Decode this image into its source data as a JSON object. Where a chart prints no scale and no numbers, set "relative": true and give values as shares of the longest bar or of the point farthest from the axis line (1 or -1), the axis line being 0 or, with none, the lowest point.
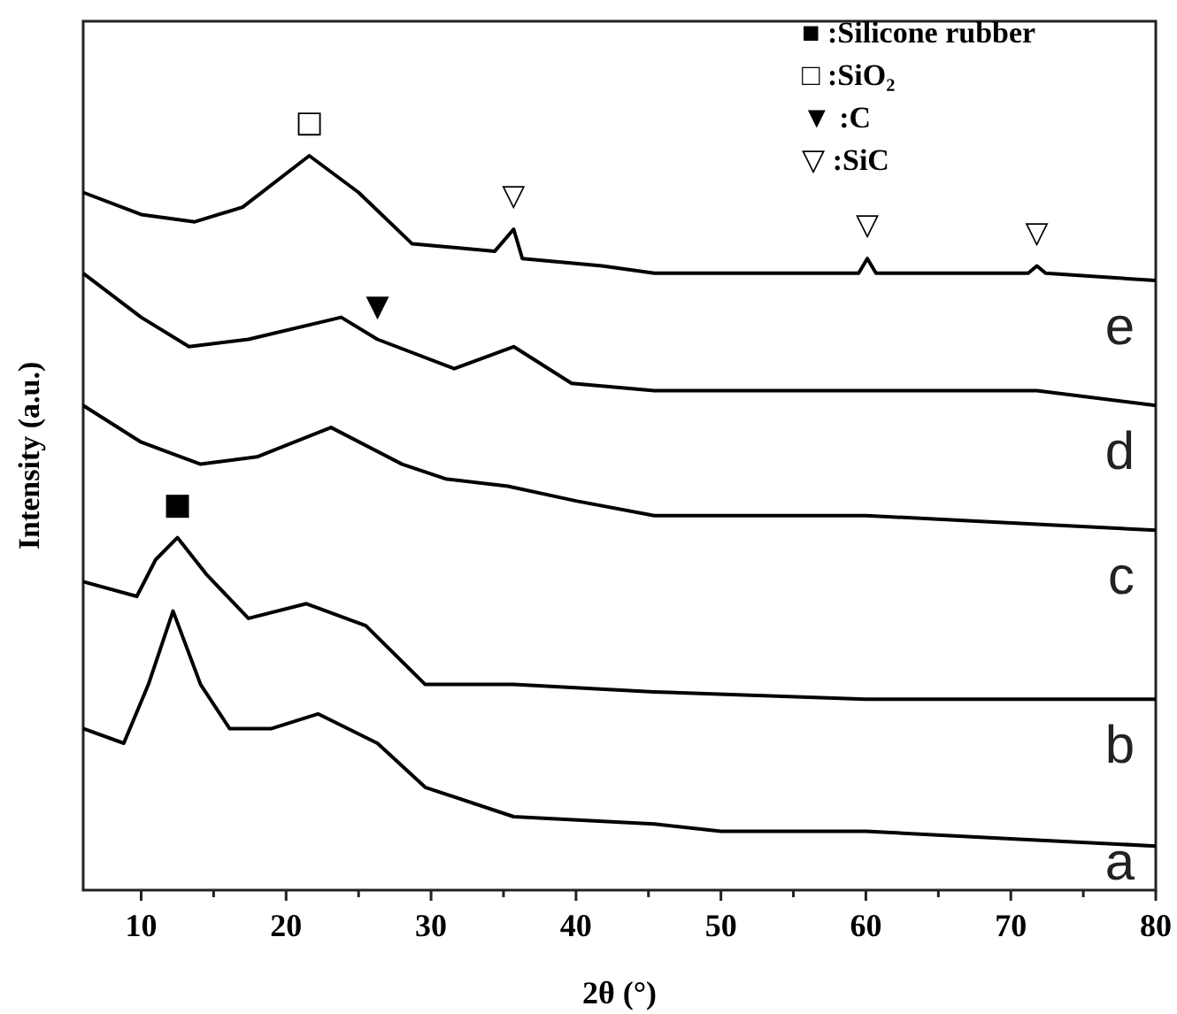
{
  "chart_data": {
    "type": "line",
    "relative": true,
    "xlabel": "2θ (°)",
    "ylabel": "Intensity (a.u.)",
    "xlim": [
      6,
      80
    ],
    "xticks": [
      10,
      {
        "value": 15,
        "label": null
      },
      20,
      {
        "value": 25,
        "label": null
      },
      30,
      {
        "value": 35,
        "label": null
      },
      40,
      {
        "value": 45,
        "label": null
      },
      50,
      {
        "value": 55,
        "label": null
      },
      60,
      {
        "value": 65,
        "label": null
      },
      70,
      {
        "value": 75,
        "label": null
      },
      80
    ],
    "tick_labels": "x",
    "grid": false,
    "marker": "none",
    "line_style": "solid",
    "series": [
      {
        "name": "a",
        "color": "#000000",
        "x": [
          6,
          8.8,
          10.5,
          12.2,
          14.1,
          16.1,
          19,
          22.2,
          26.3,
          29.6,
          35.7,
          45.4,
          50,
          60,
          70,
          80
        ],
        "values": [
          0.22,
          0.2,
          0.28,
          0.38,
          0.28,
          0.22,
          0.22,
          0.24,
          0.2,
          0.14,
          0.1,
          0.09,
          0.08,
          0.08,
          0.07,
          0.06
        ]
      },
      {
        "name": "b",
        "color": "#000000",
        "x": [
          6,
          9.7,
          11,
          12.5,
          14.5,
          17.4,
          21.4,
          25.5,
          29.6,
          35.7,
          45.4,
          60,
          70,
          80
        ],
        "values": [
          0.42,
          0.4,
          0.45,
          0.48,
          0.43,
          0.37,
          0.39,
          0.36,
          0.28,
          0.28,
          0.27,
          0.26,
          0.26,
          0.26
        ]
      },
      {
        "name": "c",
        "color": "#000000",
        "x": [
          6,
          10,
          14.1,
          18,
          23.1,
          28,
          31,
          35.3,
          40,
          45.4,
          60,
          70,
          80
        ],
        "values": [
          0.66,
          0.61,
          0.58,
          0.59,
          0.63,
          0.58,
          0.56,
          0.55,
          0.53,
          0.51,
          0.51,
          0.5,
          0.49
        ]
      },
      {
        "name": "d",
        "color": "#000000",
        "x": [
          6,
          10,
          13.3,
          17.4,
          23.8,
          26.3,
          31.6,
          35.7,
          39.7,
          45.4,
          60.1,
          71.8,
          80
        ],
        "values": [
          0.84,
          0.78,
          0.74,
          0.75,
          0.78,
          0.75,
          0.71,
          0.74,
          0.69,
          0.68,
          0.68,
          0.68,
          0.66
        ]
      },
      {
        "name": "e",
        "color": "#000000",
        "x": [
          6,
          10,
          13.7,
          17,
          21.6,
          25,
          28.7,
          34.4,
          35.7,
          36.3,
          41.8,
          45.4,
          59.5,
          60.1,
          60.7,
          71.2,
          71.8,
          72.4,
          80
        ],
        "values": [
          0.95,
          0.92,
          0.91,
          0.93,
          1,
          0.95,
          0.88,
          0.87,
          0.9,
          0.86,
          0.85,
          0.84,
          0.84,
          0.86,
          0.84,
          0.84,
          0.85,
          0.84,
          0.83
        ]
      }
    ],
    "annotations": [
      "■ :Silicone rubber",
      "□ :SiO₂",
      "▼ :C",
      "▽ :SiC",
      {
        "text": "■",
        "x": 12.5,
        "y": 0.48
      },
      {
        "text": "□",
        "x": 21.6,
        "y": 1
      },
      {
        "text": "▼",
        "x": 26.3,
        "y": 0.75
      },
      {
        "text": "▽",
        "x": 35.7,
        "y": 0.9
      },
      {
        "text": "▽",
        "x": 60.1,
        "y": 0.86
      },
      {
        "text": "▽",
        "x": 71.8,
        "y": 0.85
      }
    ]
  }
}
